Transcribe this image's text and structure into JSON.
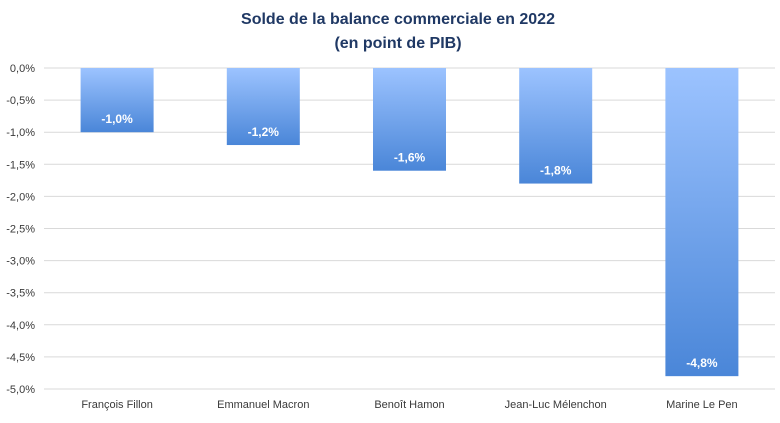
{
  "chart_data": {
    "type": "bar",
    "title": "Solde de la balance commerciale en 2022",
    "subtitle": "(en point de PIB)",
    "categories": [
      "François Fillon",
      "Emmanuel Macron",
      "Benoît Hamon",
      "Jean-Luc Mélenchon",
      "Marine Le Pen"
    ],
    "values": [
      -1.0,
      -1.2,
      -1.6,
      -1.8,
      -4.8
    ],
    "data_labels": [
      "-1,0%",
      "-1,2%",
      "-1,6%",
      "-1,8%",
      "-4,8%"
    ],
    "ylim": [
      -5.0,
      0.0
    ],
    "yticks": [
      0.0,
      -0.5,
      -1.0,
      -1.5,
      -2.0,
      -2.5,
      -3.0,
      -3.5,
      -4.0,
      -4.5,
      -5.0
    ],
    "ytick_labels": [
      "0,0%",
      "-0,5%",
      "-1,0%",
      "-1,5%",
      "-2,0%",
      "-2,5%",
      "-3,0%",
      "-3,5%",
      "-4,0%",
      "-4,5%",
      "-5,0%"
    ],
    "xlabel": "",
    "ylabel": "",
    "grid": true,
    "legend": "none",
    "colors": {
      "bar_top": "#9cc3ff",
      "bar_bottom": "#4a86d8",
      "title": "#1f3864"
    }
  }
}
